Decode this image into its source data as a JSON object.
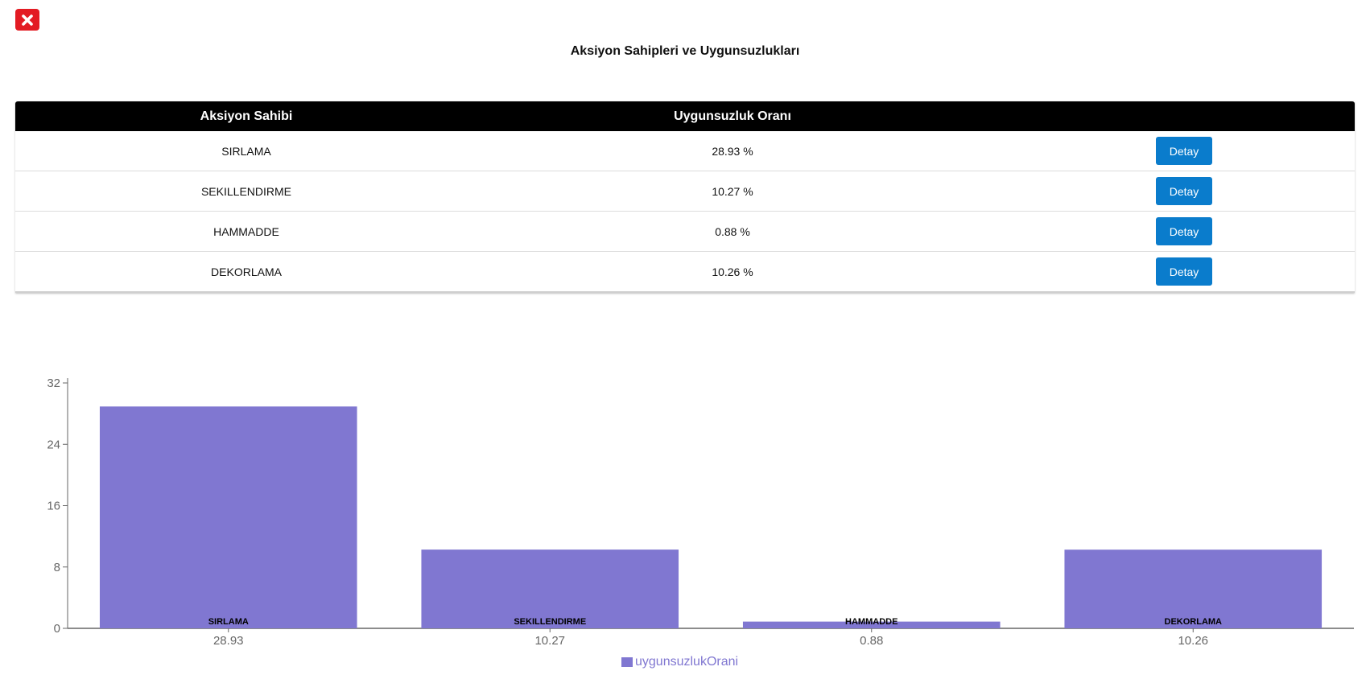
{
  "page": {
    "title": "Aksiyon Sahipleri ve Uygunsuzlukları"
  },
  "colors": {
    "close": "#e31b23",
    "header_bg": "#000000",
    "button": "#0a7ccc",
    "bar": "#8077d1"
  },
  "table": {
    "headers": [
      "Aksiyon Sahibi",
      "Uygunsuzluk Oranı",
      ""
    ],
    "rows": [
      {
        "owner": "SIRLAMA",
        "rate": "28.93 %",
        "action": "Detay"
      },
      {
        "owner": "SEKILLENDIRME",
        "rate": "10.27 %",
        "action": "Detay"
      },
      {
        "owner": "HAMMADDE",
        "rate": "0.88 %",
        "action": "Detay"
      },
      {
        "owner": "DEKORLAMA",
        "rate": "10.26 %",
        "action": "Detay"
      }
    ]
  },
  "chart_data": {
    "type": "bar",
    "categories": [
      "28.93",
      "10.27",
      "0.88",
      "10.26"
    ],
    "bar_labels": [
      "SIRLAMA",
      "SEKILLENDIRME",
      "HAMMADDE",
      "DEKORLAMA"
    ],
    "series": [
      {
        "name": "uygunsuzlukOrani",
        "values": [
          28.93,
          10.27,
          0.88,
          10.26
        ]
      }
    ],
    "yticks": [
      "0",
      "8",
      "16",
      "24",
      "32"
    ],
    "ylim": [
      0,
      32
    ],
    "legend": "bottom-center",
    "grid": false
  },
  "icons": {
    "close": "close-icon"
  }
}
